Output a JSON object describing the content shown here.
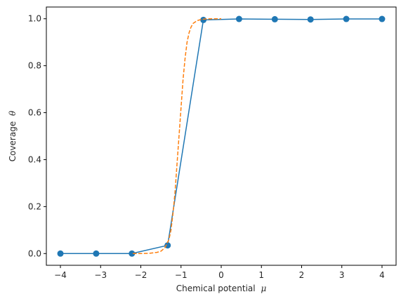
{
  "chart_data": {
    "type": "line",
    "title": "",
    "xlabel": "Chemical potential",
    "xlabel_symbol": "μ",
    "ylabel": "Coverage",
    "ylabel_symbol": "θ",
    "xlim": [
      -4.35,
      4.35
    ],
    "ylim": [
      -0.05,
      1.05
    ],
    "xticks": [
      -4,
      -3,
      -2,
      -1,
      0,
      1,
      2,
      3,
      4
    ],
    "xtick_labels": [
      "−4",
      "−3",
      "−2",
      "−1",
      "0",
      "1",
      "2",
      "3",
      "4"
    ],
    "yticks": [
      0.0,
      0.2,
      0.4,
      0.6,
      0.8,
      1.0
    ],
    "ytick_labels": [
      "0.0",
      "0.2",
      "0.4",
      "0.6",
      "0.8",
      "1.0"
    ],
    "grid": false,
    "legend": "none",
    "series": [
      {
        "style": "solid-line-with-markers",
        "color": "#1f77b4",
        "x": [
          -4.0,
          -3.111,
          -2.222,
          -1.333,
          -0.444,
          0.444,
          1.333,
          2.222,
          3.111,
          4.0
        ],
        "y": [
          0.0,
          0.0,
          0.0,
          0.035,
          0.995,
          0.999,
          0.998,
          0.997,
          0.999,
          0.999
        ]
      },
      {
        "style": "dashed",
        "color": "#ff7f0e",
        "x": [
          -2.2,
          -2.0,
          -1.8,
          -1.6,
          -1.5,
          -1.4,
          -1.3,
          -1.25,
          -1.2,
          -1.15,
          -1.1,
          -1.05,
          -1.0,
          -0.95,
          -0.9,
          -0.85,
          -0.8,
          -0.75,
          -0.7,
          -0.6,
          -0.5,
          -0.4,
          -0.2,
          0.0
        ],
        "y": [
          0.0,
          0.0,
          0.001,
          0.005,
          0.01,
          0.025,
          0.06,
          0.1,
          0.17,
          0.26,
          0.38,
          0.5,
          0.62,
          0.74,
          0.83,
          0.9,
          0.94,
          0.965,
          0.98,
          0.992,
          0.997,
          0.999,
          1.0,
          1.0
        ]
      }
    ]
  }
}
